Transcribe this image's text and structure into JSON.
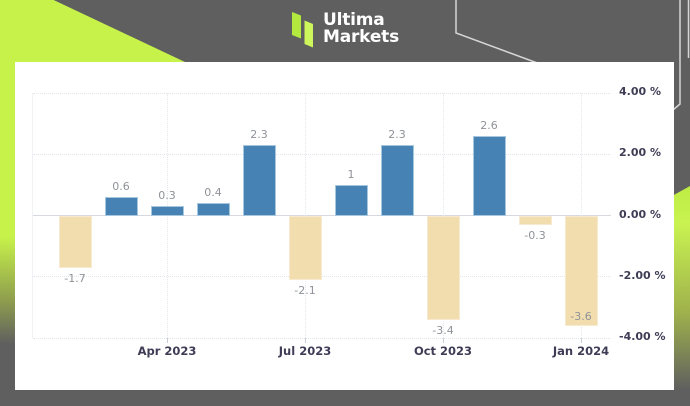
{
  "theme": {
    "background_gray": "#5f5f5f",
    "accent_lime": "#c7f24a",
    "panel_white": "#ffffff",
    "outline_gray": "#d6d6d6"
  },
  "header": {
    "brand_name_line1": "Ultima",
    "brand_name_line2": "Markets",
    "logo_icon": "ultima-logo-bars"
  },
  "chart_data": {
    "type": "bar",
    "values": [
      -1.7,
      0.6,
      0.3,
      0.4,
      2.3,
      -2.1,
      1,
      2.3,
      -3.4,
      2.6,
      -0.3,
      -3.6
    ],
    "value_labels": [
      "-1.7",
      "0.6",
      "0.3",
      "0.4",
      "2.3",
      "-2.1",
      "1",
      "2.3",
      "-3.4",
      "2.6",
      "-0.3",
      "-3.6"
    ],
    "x_ticks": [
      {
        "index": 2,
        "label": "Apr 2023"
      },
      {
        "index": 5,
        "label": "Jul 2023"
      },
      {
        "index": 8,
        "label": "Oct 2023"
      },
      {
        "index": 11,
        "label": "Jan 2024"
      }
    ],
    "y_ticks": [
      {
        "value": 4,
        "label": "4.00 %"
      },
      {
        "value": 2,
        "label": "2.00 %"
      },
      {
        "value": 0,
        "label": "0.00 %"
      },
      {
        "value": -2,
        "label": "-2.00 %"
      },
      {
        "value": -4,
        "label": "-4.00 %"
      }
    ],
    "ylim": [
      -4,
      4
    ],
    "title": "",
    "xlabel": "",
    "ylabel": "",
    "grid": true,
    "legend": null,
    "positive_color": "#4682b4",
    "positive_edge_color": "#a6c7de",
    "negative_color": "#f2ddae",
    "value_label_color": "#8f9299",
    "axis_label_color": "#3f3d56"
  }
}
